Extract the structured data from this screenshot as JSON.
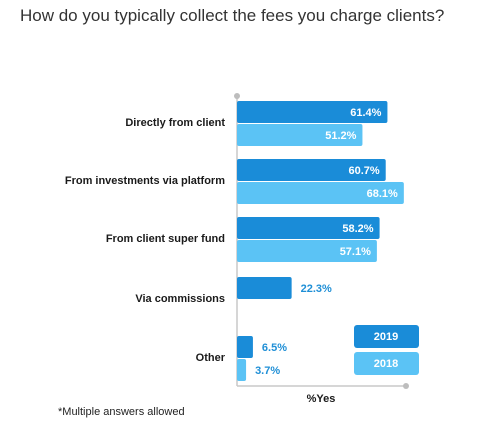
{
  "page": {
    "title": "How do you typically collect the fees you charge clients?",
    "footnote": "*Multiple answers allowed"
  },
  "chart_data": {
    "type": "bar",
    "orientation": "horizontal",
    "categories": [
      "Directly from client",
      "From investments via platform",
      "From client super fund",
      "Via commissions",
      "Other"
    ],
    "series": [
      {
        "name": "2019",
        "values": [
          61.4,
          60.7,
          58.2,
          22.3,
          6.5
        ],
        "labels": [
          "61.4%",
          "60.7%",
          "58.2%",
          "22.3%",
          "6.5%"
        ],
        "color": "#1a8cd8"
      },
      {
        "name": "2018",
        "values": [
          51.2,
          68.1,
          57.1,
          null,
          3.7
        ],
        "labels": [
          "51.2%",
          "68.1%",
          "57.1%",
          "",
          "3.7%"
        ],
        "color": "#5bc3f5"
      }
    ],
    "xlabel": "%Yes",
    "xlim": [
      0,
      100
    ],
    "legend_position": "bottom-right",
    "grid": false
  }
}
